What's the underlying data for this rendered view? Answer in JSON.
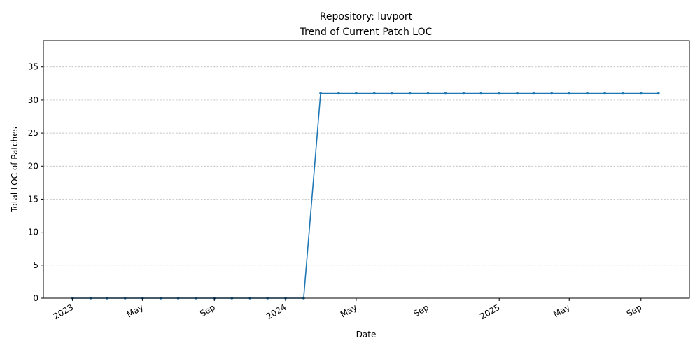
{
  "chart_data": {
    "type": "line",
    "title_line1": "Repository: luvport",
    "title_line2": "Trend of Current Patch LOC",
    "xlabel": "Date",
    "ylabel": "Total LOC of Patches",
    "ylim": [
      0,
      39
    ],
    "yticks": [
      0,
      5,
      10,
      15,
      20,
      25,
      30,
      35
    ],
    "xlim": [
      "2022-11-12",
      "2025-11-23"
    ],
    "xticks": [
      {
        "date": "2023-01-01",
        "label": "2023"
      },
      {
        "date": "2023-05-01",
        "label": "May"
      },
      {
        "date": "2023-09-01",
        "label": "Sep"
      },
      {
        "date": "2024-01-01",
        "label": "2024"
      },
      {
        "date": "2024-05-01",
        "label": "May"
      },
      {
        "date": "2024-09-01",
        "label": "Sep"
      },
      {
        "date": "2025-01-01",
        "label": "2025"
      },
      {
        "date": "2025-05-01",
        "label": "May"
      },
      {
        "date": "2025-09-01",
        "label": "Sep"
      }
    ],
    "grid": "y-dashed",
    "color": "#1f77b4",
    "series": [
      {
        "x": [
          "2023-01-01",
          "2023-02-01",
          "2023-03-01",
          "2023-04-01",
          "2023-05-01",
          "2023-06-01",
          "2023-07-01",
          "2023-08-01",
          "2023-09-01",
          "2023-10-01",
          "2023-11-01",
          "2023-12-01",
          "2024-01-01",
          "2024-02-01",
          "2024-03-01",
          "2024-04-01",
          "2024-05-01",
          "2024-06-01",
          "2024-07-01",
          "2024-08-01",
          "2024-09-01",
          "2024-10-01",
          "2024-11-01",
          "2024-12-01",
          "2025-01-01",
          "2025-02-01",
          "2025-03-01",
          "2025-04-01",
          "2025-05-01",
          "2025-06-01",
          "2025-07-01",
          "2025-08-01",
          "2025-09-01",
          "2025-10-01"
        ],
        "values": [
          0,
          0,
          0,
          0,
          0,
          0,
          0,
          0,
          0,
          0,
          0,
          0,
          0,
          0,
          31,
          31,
          31,
          31,
          31,
          31,
          31,
          31,
          31,
          31,
          31,
          31,
          31,
          31,
          31,
          31,
          31,
          31,
          31,
          31
        ]
      }
    ]
  }
}
